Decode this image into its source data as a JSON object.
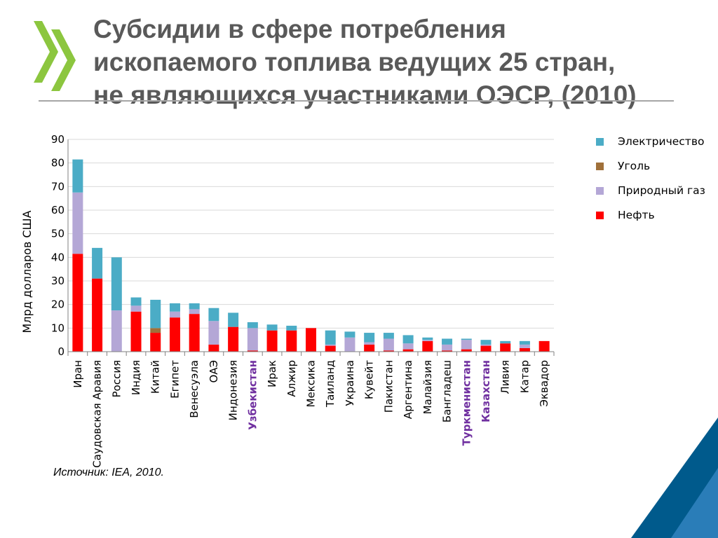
{
  "slide": {
    "title_lines": [
      "Субсидии в сфере потребления",
      "ископаемого топлива ведущих 25 стран,",
      "не являющихся участниками ОЭСР, (2010)"
    ],
    "source": "Источник:  IEA, 2010.",
    "colors": {
      "title": "#595959",
      "logo": "#8cc63f",
      "accent": "#005a8c",
      "highlight_label": "#7030a0"
    }
  },
  "legend": {
    "items": [
      {
        "label": "Электричество",
        "color": "#4bacc6"
      },
      {
        "label": "Уголь",
        "color": "#a0703a"
      },
      {
        "label": "Природный газ",
        "color": "#b4a7d6"
      },
      {
        "label": "Нефть",
        "color": "#ff0000"
      }
    ]
  },
  "chart_data": {
    "type": "bar",
    "stacked": true,
    "ylabel": "Млрд долларов США",
    "ylim": [
      0,
      90
    ],
    "yticks": [
      0,
      10,
      20,
      30,
      40,
      50,
      60,
      70,
      80,
      90
    ],
    "grid": true,
    "legend_position": "right",
    "categories": [
      "Иран",
      "Саудовская Аравия",
      "Россия",
      "Индия",
      "Китай",
      "Египет",
      "Венесуэла",
      "ОАЭ",
      "Индонезия",
      "Узбекистан",
      "Ирак",
      "Алжир",
      "Мексика",
      "Таиланд",
      "Украина",
      "Кувейт",
      "Пакистан",
      "Аргентина",
      "Малайзия",
      "Бангладеш",
      "Туркменистан",
      "Казахстан",
      "Ливия",
      "Катар",
      "Эквадор"
    ],
    "highlighted_categories": [
      "Узбекистан",
      "Туркменистан",
      "Казахстан"
    ],
    "series": [
      {
        "name": "Нефть",
        "color": "#ff0000",
        "values": [
          41.5,
          31,
          0,
          17,
          8,
          14.5,
          16,
          3,
          10.5,
          0.5,
          9,
          9,
          10,
          2.5,
          0,
          3,
          0.5,
          1,
          4.5,
          0.5,
          1,
          2.5,
          3.5,
          1.5,
          4.5
        ]
      },
      {
        "name": "Природный газ",
        "color": "#b4a7d6",
        "values": [
          26,
          0,
          17.5,
          2.5,
          0,
          2.5,
          2,
          10,
          0,
          9.5,
          0,
          0,
          0,
          0.5,
          6,
          1,
          5,
          2.5,
          0.5,
          2.5,
          4,
          0.5,
          0,
          1.5,
          0
        ]
      },
      {
        "name": "Уголь",
        "color": "#a0703a",
        "values": [
          0,
          0,
          0,
          0,
          2,
          0,
          0,
          0,
          0,
          0,
          0,
          0,
          0,
          0,
          0,
          0,
          0,
          0,
          0,
          0,
          0,
          0,
          0,
          0,
          0
        ]
      },
      {
        "name": "Электричество",
        "color": "#4bacc6",
        "values": [
          14,
          13,
          22.5,
          3.5,
          12,
          3.5,
          2.5,
          5.5,
          6,
          2.5,
          2.5,
          2,
          0,
          6,
          2.5,
          4,
          2.5,
          3.5,
          1,
          2.5,
          0.5,
          2,
          1,
          1.5,
          0
        ]
      }
    ]
  }
}
